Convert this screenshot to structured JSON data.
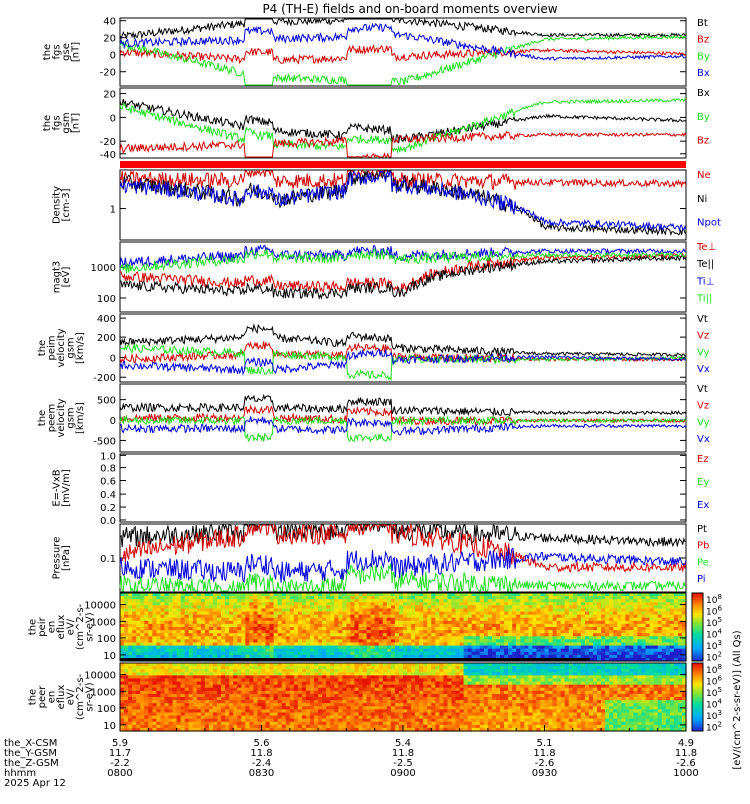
{
  "title": "P4 (TH-E) fields and on-board moments overview",
  "colors": {
    "black": "#000000",
    "red": "#d40000",
    "green": "#22dd22",
    "blue": "#0000dd",
    "band": "#ff0000"
  },
  "panels": [
    {
      "id": "fgs-gse",
      "ylabel": [
        "the",
        "fgs",
        "gse",
        "[nT]"
      ],
      "yticks": [
        "40",
        "20",
        "0",
        "-20"
      ],
      "legend": [
        {
          "text": "Bt",
          "color": "#000000"
        },
        {
          "text": "Bz",
          "color": "#d40000"
        },
        {
          "text": "By",
          "color": "#22dd22"
        },
        {
          "text": "Bx",
          "color": "#0000dd"
        }
      ]
    },
    {
      "id": "fgs-gsm",
      "ylabel": [
        "the",
        "fgs",
        "gsm",
        "[nT]"
      ],
      "yticks": [
        "20",
        "0",
        "-20",
        "-40"
      ],
      "legend": [
        {
          "text": "Bx",
          "color": "#000000"
        },
        {
          "text": "By",
          "color": "#22dd22"
        },
        {
          "text": "Bz",
          "color": "#d40000"
        }
      ]
    },
    {
      "id": "density",
      "ylabel": [
        "Density",
        "[cm-3]"
      ],
      "yticks": [
        "1"
      ],
      "legend": [
        {
          "text": "Ne",
          "color": "#d40000"
        },
        {
          "text": "Ni",
          "color": "#000000"
        },
        {
          "text": "Npot",
          "color": "#0000dd"
        }
      ]
    },
    {
      "id": "temp",
      "ylabel": [
        "magt3",
        "[eV]"
      ],
      "yticks": [
        "1000",
        "100"
      ],
      "legend": [
        {
          "text": "Te⊥",
          "color": "#d40000"
        },
        {
          "text": "Te||",
          "color": "#000000"
        },
        {
          "text": "Ti⊥",
          "color": "#0000dd"
        },
        {
          "text": "Ti||",
          "color": "#22dd22"
        }
      ]
    },
    {
      "id": "peim-vel",
      "ylabel": [
        "the",
        "peim",
        "velocity",
        "gsm",
        "[km/s]"
      ],
      "yticks": [
        "400",
        "200",
        "0",
        "-200"
      ],
      "legend": [
        {
          "text": "Vt",
          "color": "#000000"
        },
        {
          "text": "Vz",
          "color": "#d40000"
        },
        {
          "text": "Vy",
          "color": "#22dd22"
        },
        {
          "text": "Vx",
          "color": "#0000dd"
        }
      ]
    },
    {
      "id": "peem-vel",
      "ylabel": [
        "the",
        "peem",
        "velocity",
        "gsm",
        "[km/s]"
      ],
      "yticks": [
        "500",
        "0",
        "-500"
      ],
      "legend": [
        {
          "text": "Vt",
          "color": "#000000"
        },
        {
          "text": "Vz",
          "color": "#d40000"
        },
        {
          "text": "Vy",
          "color": "#22dd22"
        },
        {
          "text": "Vx",
          "color": "#0000dd"
        }
      ]
    },
    {
      "id": "efield",
      "ylabel": [
        "E=-VxB",
        "[mV/m]"
      ],
      "yticks": [
        "1.0",
        "0.8",
        "0.6",
        "0.4",
        "0.2",
        "0.0"
      ],
      "legend": [
        {
          "text": "Ez",
          "color": "#d40000"
        },
        {
          "text": "Ey",
          "color": "#22dd22"
        },
        {
          "text": "Ex",
          "color": "#0000dd"
        }
      ]
    },
    {
      "id": "pressure",
      "ylabel": [
        "Pressure",
        "[nPa]"
      ],
      "yticks": [
        "0.1"
      ],
      "legend": [
        {
          "text": "Pt",
          "color": "#000000"
        },
        {
          "text": "Pb",
          "color": "#d40000"
        },
        {
          "text": "Pe",
          "color": "#22dd22"
        },
        {
          "text": "Pi",
          "color": "#0000dd"
        }
      ]
    },
    {
      "id": "peir",
      "ylabel": [
        "the",
        "peir",
        "en",
        "eflux",
        "eV/",
        "(cm^2-s-",
        "sr-eV)"
      ],
      "yticks": [
        "10000",
        "1000",
        "100",
        "10"
      ]
    },
    {
      "id": "peer",
      "ylabel": [
        "the",
        "peer",
        "en",
        "eflux",
        "eV/",
        "(cm^2-s-",
        "sr-eV)"
      ],
      "yticks": [
        "10000",
        "1000",
        "100",
        "10"
      ]
    }
  ],
  "colorbars": [
    {
      "labels": [
        "10^8",
        "10^6",
        "10^5",
        "10^4",
        "10^3",
        "10^2"
      ],
      "title": "[eV/(cm^2-s-sr-eV)] (All Qs)"
    },
    {
      "labels": [
        "10^8",
        "10^6",
        "10^5",
        "10^4",
        "10^3",
        "10^2"
      ],
      "title": ""
    }
  ],
  "xaxis": {
    "rows": [
      {
        "label": "the_X-CSM",
        "values": [
          "5.9",
          "5.6",
          "5.4",
          "5.1",
          "4.9"
        ]
      },
      {
        "label": "the_Y-GSM",
        "values": [
          "11.7",
          "11.8",
          "11.8",
          "11.8",
          "11.8"
        ]
      },
      {
        "label": "the_Z-GSM",
        "values": [
          "-2.2",
          "-2.4",
          "-2.5",
          "-2.6",
          "-2.6"
        ]
      },
      {
        "label": "hhmm",
        "values": [
          "0800",
          "0830",
          "0900",
          "0930",
          "1000"
        ]
      }
    ],
    "date": "2025 Apr 12"
  },
  "chart_data": {
    "type": "line",
    "title": "P4 (TH-E) fields and on-board moments overview",
    "xlabel": "hhmm",
    "x": [
      "0800",
      "0830",
      "0900",
      "0930",
      "1000"
    ],
    "panels": [
      {
        "name": "the fgs gse [nT]",
        "ylim": [
          -40,
          40
        ],
        "series": [
          {
            "name": "Bt",
            "values": [
              18,
              36,
              38,
              20,
              20
            ]
          },
          {
            "name": "Bz",
            "values": [
              0,
              -10,
              -5,
              2,
              -2
            ]
          },
          {
            "name": "By",
            "values": [
              10,
              -30,
              -35,
              15,
              18
            ]
          },
          {
            "name": "Bx",
            "values": [
              10,
              15,
              20,
              -8,
              -5
            ]
          }
        ]
      },
      {
        "name": "the fgs gsm [nT]",
        "ylim": [
          -50,
          25
        ],
        "series": [
          {
            "name": "Bx",
            "values": [
              10,
              -20,
              -30,
              -5,
              -10
            ]
          },
          {
            "name": "By",
            "values": [
              5,
              -35,
              -40,
              10,
              12
            ]
          },
          {
            "name": "Bz",
            "values": [
              -40,
              -35,
              -30,
              -25,
              -25
            ]
          }
        ]
      },
      {
        "name": "Density [cm-3]",
        "scale": "log",
        "series": [
          {
            "name": "Ne",
            "values": [
              1.8,
              1.6,
              1.7,
              1.5,
              1.4
            ]
          },
          {
            "name": "Ni",
            "values": [
              1.5,
              0.5,
              1.4,
              0.15,
              0.12
            ]
          },
          {
            "name": "Npot",
            "values": [
              1.3,
              0.5,
              1.3,
              0.2,
              0.15
            ]
          }
        ]
      },
      {
        "name": "magt3 [eV]",
        "scale": "log",
        "series": [
          {
            "name": "Te⊥",
            "values": [
              300,
              150,
              120,
              1200,
              1400
            ]
          },
          {
            "name": "Te||",
            "values": [
              150,
              80,
              90,
              900,
              1200
            ]
          },
          {
            "name": "Ti⊥",
            "values": [
              800,
              1500,
              1400,
              2000,
              2000
            ]
          },
          {
            "name": "Ti||",
            "values": [
              500,
              1200,
              1100,
              1500,
              1500
            ]
          }
        ]
      },
      {
        "name": "the peim velocity gsm [km/s]",
        "ylim": [
          -200,
          400
        ],
        "series": [
          {
            "name": "Vt",
            "values": [
              150,
              200,
              100,
              50,
              40
            ]
          },
          {
            "name": "Vz",
            "values": [
              0,
              50,
              20,
              0,
              0
            ]
          },
          {
            "name": "Vy",
            "values": [
              100,
              50,
              0,
              0,
              10
            ]
          },
          {
            "name": "Vx",
            "values": [
              -50,
              -100,
              0,
              20,
              0
            ]
          }
        ]
      },
      {
        "name": "the peem velocity gsm [km/s]",
        "ylim": [
          -600,
          700
        ],
        "series": [
          {
            "name": "Vt",
            "values": [
              250,
              250,
              200,
              150,
              150
            ]
          },
          {
            "name": "Vz",
            "values": [
              50,
              60,
              0,
              0,
              0
            ]
          },
          {
            "name": "Vy",
            "values": [
              0,
              0,
              0,
              0,
              0
            ]
          },
          {
            "name": "Vx",
            "values": [
              -150,
              -150,
              -200,
              -100,
              -100
            ]
          }
        ]
      },
      {
        "name": "E=-VxB [mV/m]",
        "ylim": [
          0.0,
          1.0
        ],
        "series": []
      },
      {
        "name": "Pressure [nPa]",
        "scale": "log",
        "series": [
          {
            "name": "Pt",
            "values": [
              0.3,
              0.4,
              0.4,
              0.3,
              0.25
            ]
          },
          {
            "name": "Pb",
            "values": [
              0.15,
              0.35,
              0.35,
              0.1,
              0.1
            ]
          },
          {
            "name": "Pe",
            "values": [
              0.05,
              0.04,
              0.06,
              0.05,
              0.05
            ]
          },
          {
            "name": "Pi",
            "values": [
              0.1,
              0.08,
              0.1,
              0.15,
              0.12
            ]
          }
        ]
      }
    ]
  }
}
